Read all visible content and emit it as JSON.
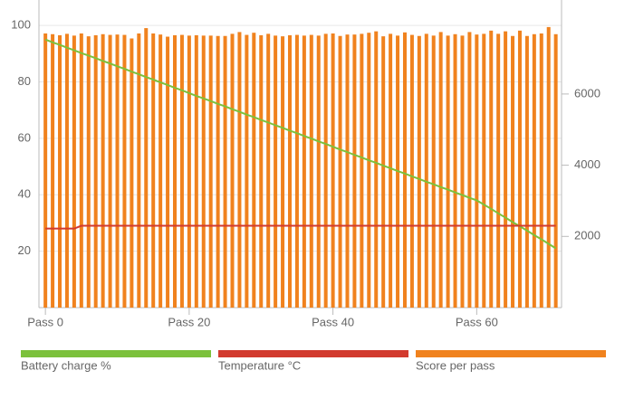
{
  "chart_data": {
    "type": "bar-line",
    "x": [
      0,
      1,
      2,
      3,
      4,
      5,
      6,
      7,
      8,
      9,
      10,
      11,
      12,
      13,
      14,
      15,
      16,
      17,
      18,
      19,
      20,
      21,
      22,
      23,
      24,
      25,
      26,
      27,
      28,
      29,
      30,
      31,
      32,
      33,
      34,
      35,
      36,
      37,
      38,
      39,
      40,
      41,
      42,
      43,
      44,
      45,
      46,
      47,
      48,
      49,
      50,
      51,
      52,
      53,
      54,
      55,
      56,
      57,
      58,
      59,
      60,
      61,
      62,
      63,
      64,
      65,
      66,
      67,
      68,
      69,
      70,
      71
    ],
    "xlim": [
      -0.9,
      71.8
    ],
    "xticks": [
      {
        "value": 0,
        "label": "Pass 0"
      },
      {
        "value": 20,
        "label": "Pass 20"
      },
      {
        "value": 40,
        "label": "Pass 40"
      },
      {
        "value": 60,
        "label": "Pass 60"
      }
    ],
    "ylim": [
      0,
      109
    ],
    "yticks": [
      20,
      40,
      60,
      80,
      100
    ],
    "y2lim": [
      0,
      8640
    ],
    "y2ticks": [
      2000,
      4000,
      6000
    ],
    "grid": true,
    "legend": "bottom",
    "series": [
      {
        "name": "Battery charge %",
        "color": "#7cc13c",
        "kind": "line",
        "values": [
          95,
          94,
          93.1,
          92.1,
          91.2,
          90.2,
          89.3,
          88.4,
          87.4,
          86.5,
          85.5,
          84.6,
          83.6,
          82.7,
          81.7,
          80.8,
          79.8,
          78.9,
          77.9,
          77,
          76,
          75,
          74.1,
          73.2,
          72.2,
          71.3,
          70.3,
          69.4,
          68.4,
          67.5,
          66.5,
          65.6,
          64.6,
          63.7,
          62.7,
          61.8,
          60.8,
          59.9,
          58.9,
          58,
          57,
          56,
          55.1,
          54.1,
          53.2,
          52.2,
          51.3,
          50.3,
          49.4,
          48.4,
          47.5,
          46.5,
          45.6,
          44.6,
          43.7,
          42.7,
          41.8,
          40.8,
          39.9,
          38.9,
          38,
          36.5,
          35,
          33.4,
          31.9,
          30.3,
          28.8,
          27.3,
          25.7,
          24.2,
          22.6,
          21
        ]
      },
      {
        "name": "Temperature °C",
        "color": "#d23a2e",
        "kind": "line",
        "values": [
          28,
          28,
          28,
          28,
          28,
          29,
          29,
          29,
          29,
          29,
          29,
          29,
          29,
          29,
          29,
          29,
          29,
          29,
          29,
          29,
          29,
          29,
          29,
          29,
          29,
          29,
          29,
          29,
          29,
          29,
          29,
          29,
          29,
          29,
          29,
          29,
          29,
          29,
          29,
          29,
          29,
          29,
          29,
          29,
          29,
          29,
          29,
          29,
          29,
          29,
          29,
          29,
          29,
          29,
          29,
          29,
          29,
          29,
          29,
          29,
          29,
          29,
          29,
          29,
          29,
          29,
          29,
          29,
          29,
          29,
          29,
          29
        ]
      },
      {
        "name": "Score per pass",
        "color": "#f0821e",
        "kind": "bar",
        "axis": "y2",
        "values": [
          7700,
          7680,
          7650,
          7690,
          7640,
          7700,
          7620,
          7650,
          7680,
          7660,
          7670,
          7660,
          7560,
          7700,
          7850,
          7700,
          7670,
          7610,
          7650,
          7660,
          7640,
          7650,
          7640,
          7640,
          7630,
          7630,
          7690,
          7740,
          7660,
          7720,
          7650,
          7690,
          7640,
          7620,
          7650,
          7660,
          7640,
          7660,
          7640,
          7690,
          7700,
          7630,
          7670,
          7670,
          7690,
          7720,
          7760,
          7620,
          7690,
          7640,
          7730,
          7660,
          7630,
          7690,
          7640,
          7740,
          7640,
          7680,
          7640,
          7740,
          7670,
          7690,
          7780,
          7690,
          7760,
          7630,
          7780,
          7630,
          7680,
          7700,
          7880,
          7680
        ]
      }
    ]
  }
}
